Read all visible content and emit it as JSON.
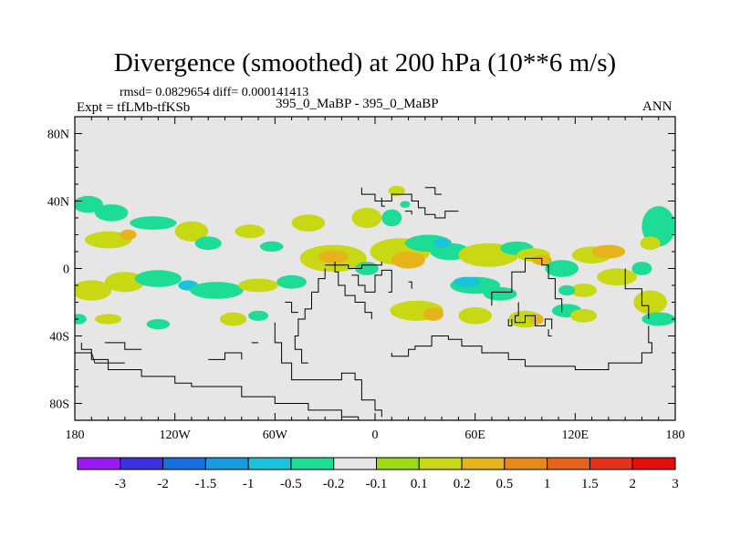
{
  "header": {
    "title": "Divergence (smoothed) at 200 hPa (10**6 m/s)",
    "stats": "rmsd= 0.0829654 diff= 0.000141413",
    "expt": "Expt = tfLMb-tfKSb",
    "subtitle": "395_0_MaBP - 395_0_MaBP",
    "season": "ANN"
  },
  "chart_data": {
    "type": "heatmap",
    "title": "Divergence (smoothed) at 200 hPa (10**6 m/s)",
    "xlabel": "",
    "ylabel": "",
    "xlim": [
      -180,
      180
    ],
    "ylim": [
      -90,
      90
    ],
    "x_ticks": [
      {
        "value": -180,
        "label": "180"
      },
      {
        "value": -120,
        "label": "120W"
      },
      {
        "value": -60,
        "label": "60W"
      },
      {
        "value": 0,
        "label": "0"
      },
      {
        "value": 60,
        "label": "60E"
      },
      {
        "value": 120,
        "label": "120E"
      },
      {
        "value": 180,
        "label": "180"
      }
    ],
    "y_ticks": [
      {
        "value": 80,
        "label": "80N"
      },
      {
        "value": 40,
        "label": "40N"
      },
      {
        "value": 0,
        "label": "0"
      },
      {
        "value": -40,
        "label": "40S"
      },
      {
        "value": -80,
        "label": "80S"
      }
    ],
    "colorbar": {
      "labels": [
        "-3",
        "-2",
        "-1.5",
        "-1",
        "-0.5",
        "-0.2",
        "-0.1",
        "0.1",
        "0.2",
        "0.5",
        "1",
        "1.5",
        "2",
        "3"
      ],
      "colors": [
        "#9a1af0",
        "#3d32e0",
        "#1a6fe0",
        "#1a9ae0",
        "#19c4da",
        "#1ddc96",
        "#e6e6e6",
        "#9adc14",
        "#c8d814",
        "#e6b41a",
        "#e68a1a",
        "#e6641a",
        "#e6321a",
        "#e60f0f"
      ]
    },
    "background_color": "#e6e6e6",
    "contour_regions": [
      {
        "lon": -172,
        "lat": 38,
        "rlon": 9,
        "rlat": 5,
        "level": -0.2
      },
      {
        "lon": -158,
        "lat": 33,
        "rlon": 10,
        "rlat": 5,
        "level": -0.2
      },
      {
        "lon": -160,
        "lat": 17,
        "rlon": 14,
        "rlat": 5,
        "level": 0.2
      },
      {
        "lon": -148,
        "lat": 20,
        "rlon": 5,
        "rlat": 3,
        "level": 0.5
      },
      {
        "lon": -133,
        "lat": 27,
        "rlon": 14,
        "rlat": 4,
        "level": -0.2
      },
      {
        "lon": -110,
        "lat": 22,
        "rlon": 10,
        "rlat": 6,
        "level": 0.2
      },
      {
        "lon": -100,
        "lat": 15,
        "rlon": 8,
        "rlat": 4,
        "level": -0.2
      },
      {
        "lon": -75,
        "lat": 22,
        "rlon": 9,
        "rlat": 4,
        "level": 0.2
      },
      {
        "lon": -62,
        "lat": 13,
        "rlon": 7,
        "rlat": 3,
        "level": -0.2
      },
      {
        "lon": -40,
        "lat": 27,
        "rlon": 10,
        "rlat": 5,
        "level": 0.2
      },
      {
        "lon": -5,
        "lat": 30,
        "rlon": 9,
        "rlat": 6,
        "level": 0.2
      },
      {
        "lon": 10,
        "lat": 30,
        "rlon": 6,
        "rlat": 5,
        "level": -0.2
      },
      {
        "lon": 13,
        "lat": 46,
        "rlon": 5,
        "rlat": 3,
        "level": 0.2
      },
      {
        "lon": 18,
        "lat": 38,
        "rlon": 3,
        "rlat": 2,
        "level": -0.2
      },
      {
        "lon": -170,
        "lat": -13,
        "rlon": 12,
        "rlat": 6,
        "level": 0.2
      },
      {
        "lon": -150,
        "lat": -8,
        "rlon": 12,
        "rlat": 6,
        "level": 0.2
      },
      {
        "lon": -130,
        "lat": -6,
        "rlon": 14,
        "rlat": 5,
        "level": -0.2
      },
      {
        "lon": -112,
        "lat": -10,
        "rlon": 6,
        "rlat": 3,
        "level": -0.5
      },
      {
        "lon": -95,
        "lat": -13,
        "rlon": 16,
        "rlat": 5,
        "level": -0.2
      },
      {
        "lon": -70,
        "lat": -10,
        "rlon": 12,
        "rlat": 4,
        "level": 0.2
      },
      {
        "lon": -50,
        "lat": -8,
        "rlon": 9,
        "rlat": 4,
        "level": -0.2
      },
      {
        "lon": -160,
        "lat": -30,
        "rlon": 8,
        "rlat": 3,
        "level": 0.2
      },
      {
        "lon": -130,
        "lat": -33,
        "rlon": 7,
        "rlat": 3,
        "level": -0.2
      },
      {
        "lon": -85,
        "lat": -30,
        "rlon": 8,
        "rlat": 4,
        "level": 0.2
      },
      {
        "lon": -70,
        "lat": -28,
        "rlon": 6,
        "rlat": 3,
        "level": -0.2
      },
      {
        "lon": -25,
        "lat": 6,
        "rlon": 20,
        "rlat": 8,
        "level": 0.2
      },
      {
        "lon": -25,
        "lat": 7,
        "rlon": 9,
        "rlat": 4,
        "level": 0.5
      },
      {
        "lon": -5,
        "lat": 0,
        "rlon": 7,
        "rlat": 4,
        "level": -0.2
      },
      {
        "lon": 15,
        "lat": 10,
        "rlon": 18,
        "rlat": 8,
        "level": 0.2
      },
      {
        "lon": 20,
        "lat": 5,
        "rlon": 10,
        "rlat": 5,
        "level": 0.5
      },
      {
        "lon": 32,
        "lat": 15,
        "rlon": 14,
        "rlat": 5,
        "level": -0.2
      },
      {
        "lon": 45,
        "lat": 10,
        "rlon": 12,
        "rlat": 5,
        "level": -0.2
      },
      {
        "lon": 40,
        "lat": 15,
        "rlon": 5,
        "rlat": 3,
        "level": -0.5
      },
      {
        "lon": 68,
        "lat": 8,
        "rlon": 18,
        "rlat": 7,
        "level": 0.2
      },
      {
        "lon": 85,
        "lat": 12,
        "rlon": 10,
        "rlat": 4,
        "level": -0.2
      },
      {
        "lon": 95,
        "lat": 8,
        "rlon": 10,
        "rlat": 4,
        "level": 0.2
      },
      {
        "lon": 100,
        "lat": 5,
        "rlon": 6,
        "rlat": 3,
        "level": 0.5
      },
      {
        "lon": 112,
        "lat": 0,
        "rlon": 10,
        "rlat": 5,
        "level": -0.2
      },
      {
        "lon": 130,
        "lat": 8,
        "rlon": 12,
        "rlat": 5,
        "level": 0.2
      },
      {
        "lon": 140,
        "lat": 10,
        "rlon": 10,
        "rlat": 4,
        "level": 0.5
      },
      {
        "lon": 160,
        "lat": 0,
        "rlon": 6,
        "rlat": 4,
        "level": -0.2
      },
      {
        "lon": 145,
        "lat": -5,
        "rlon": 12,
        "rlat": 5,
        "level": 0.2
      },
      {
        "lon": 125,
        "lat": -13,
        "rlon": 8,
        "rlat": 4,
        "level": 0.2
      },
      {
        "lon": 115,
        "lat": -13,
        "rlon": 5,
        "rlat": 3,
        "level": -0.2
      },
      {
        "lon": 60,
        "lat": -10,
        "rlon": 15,
        "rlat": 5,
        "level": -0.2
      },
      {
        "lon": 55,
        "lat": -8,
        "rlon": 8,
        "rlat": 3,
        "level": -0.5
      },
      {
        "lon": 75,
        "lat": -15,
        "rlon": 10,
        "rlat": 4,
        "level": -0.2
      },
      {
        "lon": 25,
        "lat": -25,
        "rlon": 16,
        "rlat": 6,
        "level": 0.2
      },
      {
        "lon": 35,
        "lat": -27,
        "rlon": 6,
        "rlat": 4,
        "level": 0.5
      },
      {
        "lon": 60,
        "lat": -28,
        "rlon": 10,
        "rlat": 5,
        "level": 0.2
      },
      {
        "lon": 90,
        "lat": -30,
        "rlon": 10,
        "rlat": 5,
        "level": 0.2
      },
      {
        "lon": 97,
        "lat": -30,
        "rlon": 4,
        "rlat": 3,
        "level": 0.5
      },
      {
        "lon": 115,
        "lat": -25,
        "rlon": 9,
        "rlat": 4,
        "level": -0.2
      },
      {
        "lon": 125,
        "lat": -28,
        "rlon": 8,
        "rlat": 4,
        "level": 0.2
      },
      {
        "lon": 170,
        "lat": 25,
        "rlon": 10,
        "rlat": 12,
        "level": -0.2
      },
      {
        "lon": 165,
        "lat": 15,
        "rlon": 6,
        "rlat": 4,
        "level": 0.2
      },
      {
        "lon": 165,
        "lat": -20,
        "rlon": 10,
        "rlat": 7,
        "level": 0.2
      },
      {
        "lon": 170,
        "lat": -30,
        "rlon": 10,
        "rlat": 4,
        "level": -0.2
      },
      {
        "lon": -178,
        "lat": -30,
        "rlon": 5,
        "rlat": 3,
        "level": -0.2
      }
    ],
    "coastlines": [
      [
        [
          -8,
          48
        ],
        [
          -8,
          44
        ],
        [
          0,
          44
        ],
        [
          0,
          40
        ],
        [
          10,
          40
        ],
        [
          10,
          44
        ],
        [
          22,
          44
        ],
        [
          22,
          40
        ],
        [
          26,
          40
        ],
        [
          26,
          36
        ],
        [
          30,
          36
        ],
        [
          30,
          32
        ],
        [
          36,
          32
        ],
        [
          36,
          30
        ],
        [
          42,
          30
        ],
        [
          42,
          34
        ],
        [
          50,
          34
        ]
      ],
      [
        [
          -30,
          0
        ],
        [
          -30,
          -6
        ],
        [
          -34,
          -6
        ],
        [
          -34,
          -14
        ],
        [
          -38,
          -14
        ],
        [
          -38,
          -24
        ],
        [
          -42,
          -24
        ],
        [
          -42,
          -30
        ],
        [
          -46,
          -30
        ],
        [
          -46,
          -40
        ],
        [
          -48,
          -40
        ],
        [
          -48,
          -48
        ],
        [
          -44,
          -48
        ],
        [
          -44,
          -56
        ],
        [
          -40,
          -56
        ]
      ],
      [
        [
          -24,
          4
        ],
        [
          -24,
          -2
        ],
        [
          -22,
          -2
        ],
        [
          -22,
          -10
        ],
        [
          -18,
          -10
        ],
        [
          -18,
          -16
        ],
        [
          -12,
          -16
        ],
        [
          -12,
          -20
        ],
        [
          -6,
          -20
        ],
        [
          -6,
          -26
        ],
        [
          -2,
          -26
        ],
        [
          -2,
          -30
        ]
      ],
      [
        [
          -14,
          -4
        ],
        [
          -10,
          -4
        ],
        [
          -10,
          -10
        ],
        [
          -6,
          -10
        ],
        [
          -6,
          -14
        ],
        [
          0,
          -14
        ],
        [
          0,
          -4
        ],
        [
          4,
          -4
        ],
        [
          4,
          -1
        ],
        [
          10,
          -1
        ],
        [
          10,
          -14
        ],
        [
          8,
          -14
        ]
      ],
      [
        [
          -30,
          2
        ],
        [
          -16,
          2
        ],
        [
          -16,
          0
        ],
        [
          -8,
          0
        ],
        [
          -8,
          2
        ],
        [
          4,
          2
        ],
        [
          4,
          4
        ]
      ],
      [
        [
          -60,
          -32
        ],
        [
          -60,
          -44
        ],
        [
          -56,
          -44
        ],
        [
          -56,
          -56
        ],
        [
          -50,
          -56
        ],
        [
          -50,
          -66
        ],
        [
          -20,
          -66
        ],
        [
          -20,
          -62
        ],
        [
          -12,
          -62
        ],
        [
          -12,
          -66
        ],
        [
          -8,
          -66
        ],
        [
          -8,
          -78
        ],
        [
          0,
          -78
        ],
        [
          0,
          -84
        ],
        [
          4,
          -84
        ],
        [
          4,
          -88
        ]
      ],
      [
        [
          -176,
          -44
        ],
        [
          -176,
          -48
        ],
        [
          -170,
          -48
        ],
        [
          -170,
          -54
        ],
        [
          -160,
          -54
        ],
        [
          -160,
          -60
        ],
        [
          -140,
          -60
        ],
        [
          -140,
          -64
        ],
        [
          -120,
          -64
        ],
        [
          -120,
          -68
        ],
        [
          -110,
          -68
        ],
        [
          -110,
          -70
        ],
        [
          -80,
          -70
        ],
        [
          -80,
          -76
        ],
        [
          -60,
          -76
        ],
        [
          -60,
          -80
        ],
        [
          -40,
          -80
        ],
        [
          -40,
          -84
        ],
        [
          -20,
          -84
        ],
        [
          -20,
          -88
        ],
        [
          -10,
          -88
        ]
      ],
      [
        [
          -178,
          -50
        ],
        [
          -170,
          -50
        ],
        [
          -168,
          -56
        ],
        [
          -150,
          -56
        ]
      ],
      [
        [
          -162,
          -44
        ],
        [
          -150,
          -44
        ],
        [
          -150,
          -48
        ],
        [
          -140,
          -48
        ]
      ],
      [
        [
          -100,
          -54
        ],
        [
          -90,
          -54
        ],
        [
          -90,
          -50
        ],
        [
          -80,
          -50
        ],
        [
          -80,
          -54
        ]
      ],
      [
        [
          -74,
          -44
        ],
        [
          -70,
          -44
        ]
      ],
      [
        [
          -54,
          -20
        ],
        [
          -50,
          -20
        ],
        [
          -50,
          -26
        ],
        [
          -46,
          -26
        ]
      ],
      [
        [
          70,
          -22
        ],
        [
          70,
          -14
        ],
        [
          82,
          -14
        ],
        [
          82,
          -2
        ],
        [
          90,
          -2
        ],
        [
          90,
          6
        ],
        [
          100,
          6
        ],
        [
          100,
          2
        ],
        [
          104,
          2
        ],
        [
          104,
          -6
        ],
        [
          108,
          -6
        ],
        [
          108,
          -18
        ],
        [
          112,
          -18
        ],
        [
          112,
          -26
        ]
      ],
      [
        [
          86,
          -20
        ],
        [
          86,
          -28
        ],
        [
          84,
          -28
        ],
        [
          84,
          -32
        ],
        [
          90,
          -32
        ],
        [
          90,
          -28
        ],
        [
          96,
          -28
        ],
        [
          96,
          -34
        ],
        [
          102,
          -34
        ],
        [
          102,
          -30
        ],
        [
          106,
          -30
        ],
        [
          106,
          -36
        ]
      ],
      [
        [
          80,
          -30
        ],
        [
          80,
          -34
        ],
        [
          82,
          -34
        ],
        [
          82,
          -30
        ]
      ],
      [
        [
          106,
          -40
        ],
        [
          104,
          -40
        ],
        [
          104,
          -36
        ]
      ],
      [
        [
          150,
          0
        ],
        [
          150,
          -12
        ],
        [
          160,
          -12
        ],
        [
          160,
          -22
        ],
        [
          164,
          -22
        ],
        [
          164,
          -30
        ]
      ],
      [
        [
          164,
          -34
        ],
        [
          164,
          -44
        ],
        [
          166,
          -44
        ],
        [
          166,
          -50
        ],
        [
          160,
          -50
        ],
        [
          160,
          -56
        ],
        [
          140,
          -56
        ],
        [
          140,
          -60
        ],
        [
          120,
          -60
        ],
        [
          120,
          -58
        ],
        [
          90,
          -58
        ],
        [
          90,
          -54
        ],
        [
          80,
          -54
        ],
        [
          80,
          -50
        ],
        [
          64,
          -50
        ],
        [
          64,
          -46
        ],
        [
          52,
          -46
        ],
        [
          52,
          -42
        ],
        [
          44,
          -42
        ],
        [
          44,
          -40
        ],
        [
          34,
          -40
        ],
        [
          34,
          -46
        ],
        [
          24,
          -46
        ],
        [
          24,
          -48
        ],
        [
          20,
          -48
        ],
        [
          20,
          -52
        ],
        [
          10,
          -52
        ],
        [
          10,
          -50
        ]
      ],
      [
        [
          4,
          42
        ],
        [
          4,
          37
        ],
        [
          6,
          37
        ]
      ],
      [
        [
          30,
          48
        ],
        [
          36,
          48
        ],
        [
          36,
          44
        ],
        [
          40,
          44
        ]
      ],
      [
        [
          18,
          34
        ],
        [
          22,
          34
        ],
        [
          22,
          32
        ]
      ],
      [
        [
          20,
          -8
        ],
        [
          22,
          -8
        ],
        [
          22,
          -12
        ]
      ]
    ]
  }
}
